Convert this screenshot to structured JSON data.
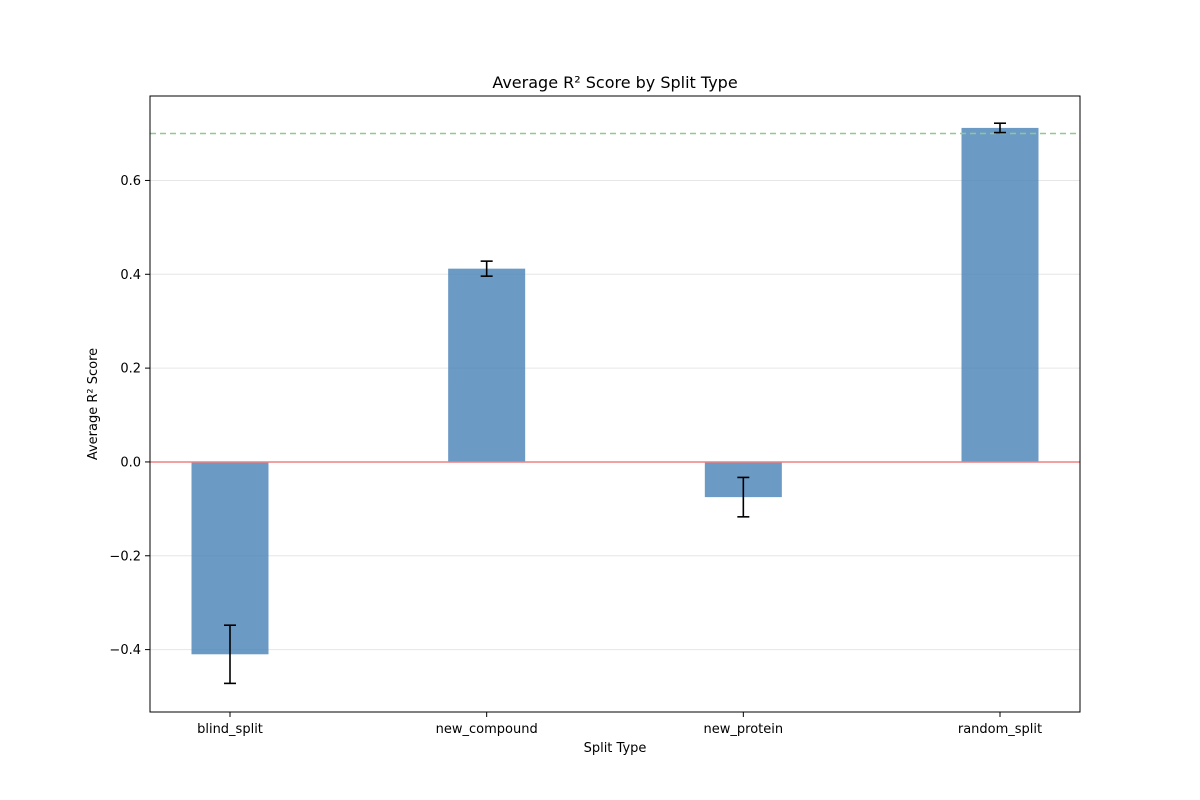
{
  "chart_data": {
    "type": "bar",
    "title": "Average R² Score by Split Type",
    "xlabel": "Split Type",
    "ylabel": "Average R² Score",
    "categories": [
      "blind_split",
      "new_compound",
      "new_protein",
      "random_split"
    ],
    "values": [
      -0.41,
      0.412,
      -0.075,
      0.712
    ],
    "errors": [
      0.062,
      0.016,
      0.042,
      0.01
    ],
    "ylim": [
      -0.533,
      0.78
    ],
    "yticks": [
      -0.4,
      -0.2,
      0.0,
      0.2,
      0.4,
      0.6
    ],
    "ytick_labels": [
      "−0.4",
      "−0.2",
      "0.0",
      "0.2",
      "0.4",
      "0.6"
    ],
    "reference_lines": [
      {
        "value": 0.0,
        "color": "#f08080",
        "style": "solid"
      },
      {
        "value": 0.7,
        "color": "#90c990",
        "style": "dashed"
      }
    ],
    "grid": "y",
    "bar_color": "#4a84b8",
    "legend": "none"
  }
}
